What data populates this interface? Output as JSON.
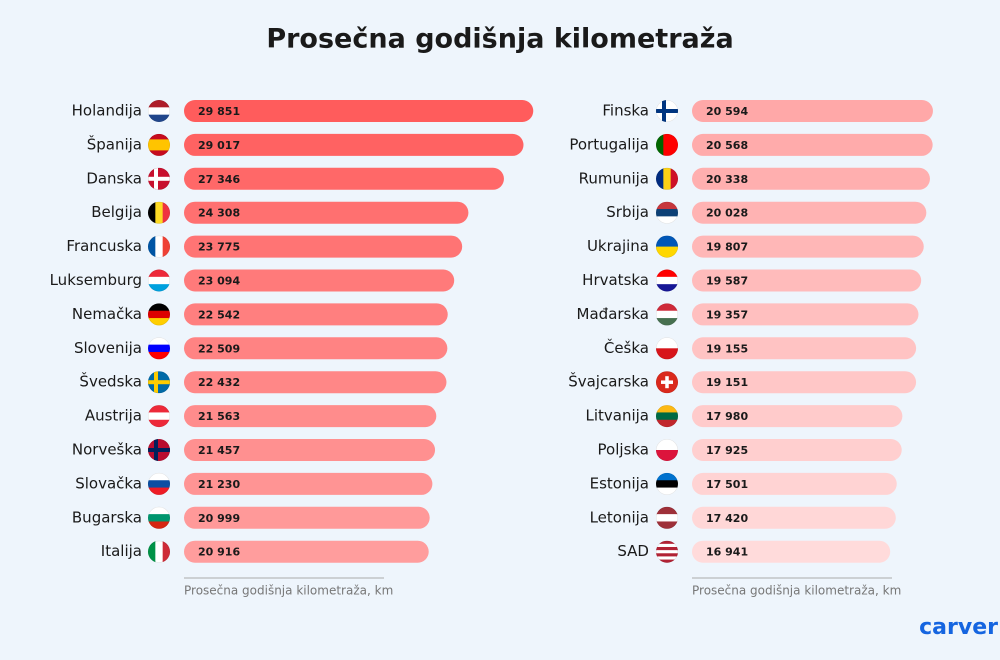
{
  "title": "Prosečna godišnja kilometraža",
  "logo": "carver",
  "chart_data": [
    {
      "type": "bar",
      "orientation": "horizontal",
      "categories": [
        "Holandija",
        "Španija",
        "Danska",
        "Belgija",
        "Francuska",
        "Luksemburg",
        "Nemačka",
        "Slovenija",
        "Švedska",
        "Austrija",
        "Norveška",
        "Slovačka",
        "Bugarska",
        "Italija"
      ],
      "values": [
        29851,
        29017,
        27346,
        24308,
        23775,
        23094,
        22542,
        22509,
        22432,
        21563,
        21457,
        21230,
        20999,
        20916
      ],
      "value_labels": [
        "29 851",
        "29 017",
        "27 346",
        "24 308",
        "23 775",
        "23 094",
        "22 542",
        "22 509",
        "22 432",
        "21 563",
        "21 457",
        "21 230",
        "20 999",
        "20 916"
      ],
      "colors": [
        "#ff5c5c",
        "#ff6262",
        "#ff6868",
        "#ff7070",
        "#ff7474",
        "#ff7a7a",
        "#ff7f7f",
        "#ff8383",
        "#ff8787",
        "#ff8c8c",
        "#ff9090",
        "#ff9494",
        "#ff9999",
        "#ff9d9d"
      ],
      "x_label": "Prosečna godišnja kilometraža, km",
      "xlim": [
        0,
        30000
      ]
    },
    {
      "type": "bar",
      "orientation": "horizontal",
      "categories": [
        "Finska",
        "Portugalija",
        "Rumunija",
        "Srbija",
        "Ukrajina",
        "Hrvatska",
        "Mađarska",
        "Češka",
        "Švajcarska",
        "Litvanija",
        "Poljska",
        "Estonija",
        "Letonija",
        "SAD"
      ],
      "values": [
        20594,
        20568,
        20338,
        20028,
        19807,
        19587,
        19357,
        19155,
        19151,
        17980,
        17925,
        17501,
        17420,
        16941
      ],
      "value_labels": [
        "20 594",
        "20 568",
        "20 338",
        "20 028",
        "19 807",
        "19 587",
        "19 357",
        "19 155",
        "19 151",
        "17 980",
        "17 925",
        "17 501",
        "17 420",
        "16 941"
      ],
      "colors": [
        "#ffa8a8",
        "#ffabab",
        "#ffafaf",
        "#ffb3b3",
        "#ffb7b7",
        "#ffbbbb",
        "#ffbfbf",
        "#ffc3c3",
        "#ffc7c7",
        "#ffcbcb",
        "#ffcfcf",
        "#ffd3d3",
        "#ffd7d7",
        "#ffdbdb"
      ],
      "x_label": "Prosečna godišnja kilometraža, km",
      "xlim": [
        0,
        30000
      ]
    }
  ]
}
